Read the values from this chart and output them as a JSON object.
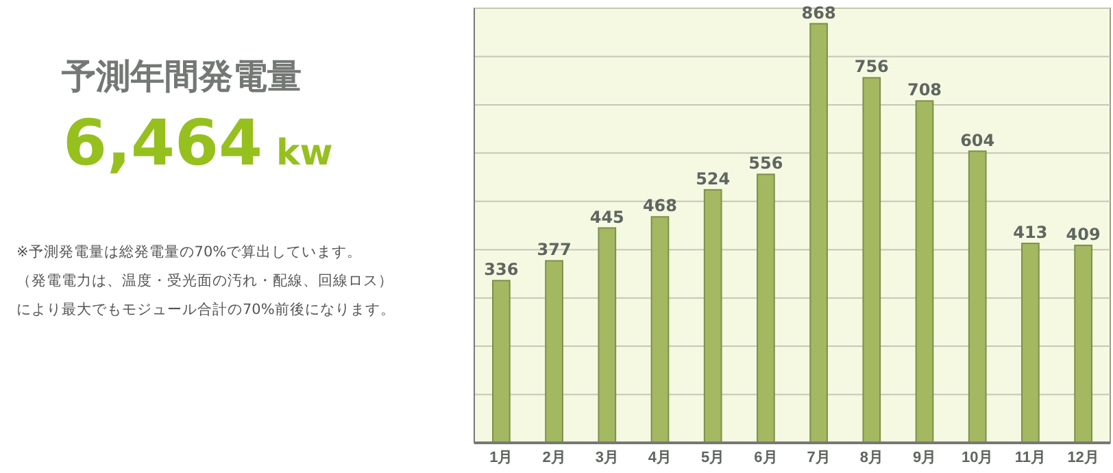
{
  "chart_data": {
    "type": "bar",
    "title": "予測年間発電量",
    "subtitle": "6,464 kw",
    "annotations": [
      "※予測発電量は総発電量の70%で算出しています。",
      "（発電電力は、温度・受光面の汚れ・配線、回線ロス）",
      "により最大でもモジュール合計の70%前後になります。"
    ],
    "categories": [
      "1月",
      "2月",
      "3月",
      "4月",
      "5月",
      "6月",
      "7月",
      "8月",
      "9月",
      "10月",
      "11月",
      "12月"
    ],
    "values": [
      336,
      377,
      445,
      468,
      524,
      556,
      868,
      756,
      708,
      604,
      413,
      409
    ],
    "color": "#a3b860",
    "ylim": [
      0,
      900
    ],
    "yticks": [
      {
        "value": 0,
        "label": null
      },
      {
        "value": 100,
        "label": null
      },
      {
        "value": 200,
        "label": null
      },
      {
        "value": 300,
        "label": null
      },
      {
        "value": 400,
        "label": null
      },
      {
        "value": 500,
        "label": null
      },
      {
        "value": 600,
        "label": null
      },
      {
        "value": 700,
        "label": null
      },
      {
        "value": 800,
        "label": null
      },
      {
        "value": 900,
        "label": null
      }
    ],
    "tick_labels": "x",
    "grid": "y",
    "data_labels": true
  }
}
